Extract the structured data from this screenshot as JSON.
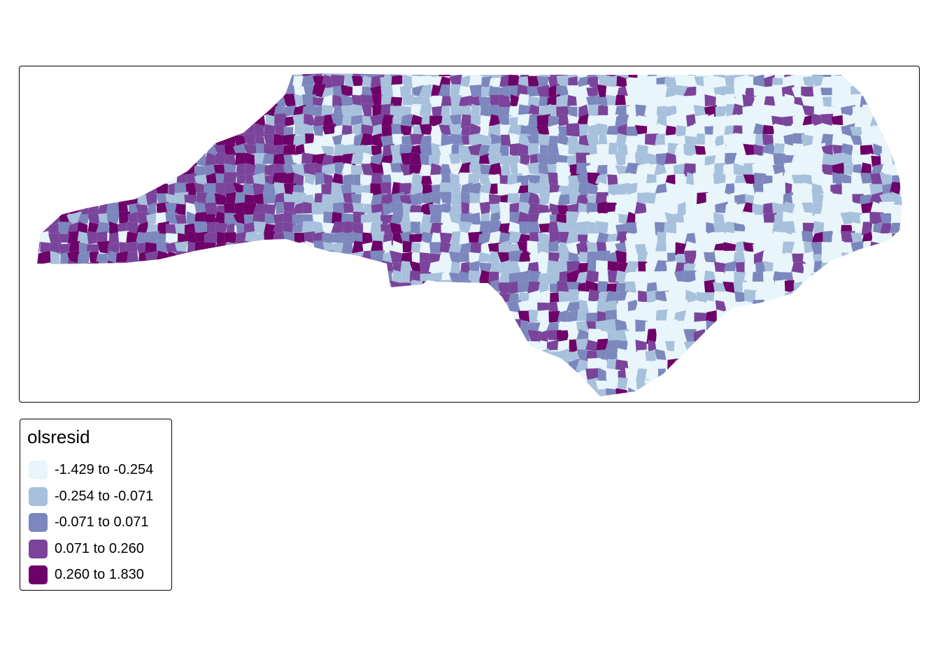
{
  "legend": {
    "title": "olsresid",
    "classes": [
      {
        "label": "-1.429 to -0.254",
        "color": "#e8f5fa"
      },
      {
        "label": "-0.254 to -0.071",
        "color": "#a7c0dc"
      },
      {
        "label": "-0.071 to 0.071",
        "color": "#7b87bd"
      },
      {
        "label": "0.071 to 0.260",
        "color": "#7a449b"
      },
      {
        "label": "0.260 to 1.830",
        "color": "#6e0069"
      }
    ]
  }
}
